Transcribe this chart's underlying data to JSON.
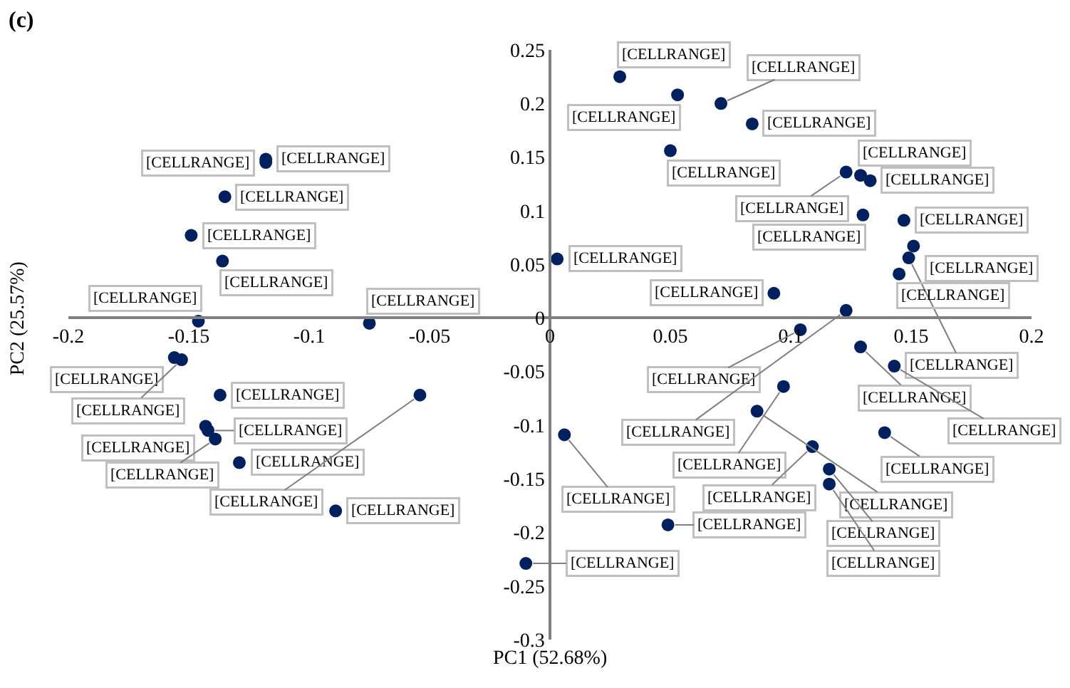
{
  "chart_data": {
    "type": "scatter",
    "title": "(c)",
    "xlabel": "PC1 (52.68%)",
    "ylabel": "PC2 (25.57%)",
    "x": [
      -0.118,
      -0.118,
      -0.135,
      -0.149,
      -0.136,
      -0.146,
      -0.075,
      -0.156,
      -0.153,
      -0.137,
      -0.143,
      -0.142,
      -0.139,
      -0.129,
      -0.089,
      -0.01,
      -0.054,
      0.029,
      0.053,
      0.071,
      0.084,
      0.05,
      0.123,
      0.129,
      0.133,
      0.13,
      0.147,
      0.151,
      0.149,
      0.145,
      0.003,
      0.093,
      0.104,
      0.129,
      0.123,
      0.097,
      0.086,
      0.143,
      0.139,
      0.109,
      0.116,
      0.116,
      0.006,
      0.049
    ],
    "series": [
      {
        "color": "#002060",
        "values": [
          0.148,
          0.145,
          0.113,
          0.077,
          0.053,
          -0.003,
          -0.005,
          -0.037,
          -0.039,
          -0.072,
          -0.101,
          -0.105,
          -0.113,
          -0.135,
          -0.18,
          -0.229,
          -0.072,
          0.225,
          0.208,
          0.2,
          0.181,
          0.156,
          0.136,
          0.133,
          0.128,
          0.096,
          0.091,
          0.067,
          0.056,
          0.041,
          0.055,
          0.023,
          -0.011,
          -0.027,
          0.007,
          -0.064,
          -0.087,
          -0.045,
          -0.107,
          -0.12,
          -0.141,
          -0.155,
          -0.109,
          -0.193
        ],
        "value_labels": [
          "[CELLRANGE]",
          "[CELLRANGE]",
          "[CELLRANGE]",
          "[CELLRANGE]",
          "[CELLRANGE]",
          "[CELLRANGE]",
          "[CELLRANGE]",
          "[CELLRANGE]",
          "[CELLRANGE]",
          "[CELLRANGE]",
          "[CELLRANGE]",
          "[CELLRANGE]",
          "[CELLRANGE]",
          "[CELLRANGE]",
          "[CELLRANGE]",
          "[CELLRANGE]",
          "[CELLRANGE]",
          "[CELLRANGE]",
          "[CELLRANGE]",
          "[CELLRANGE]",
          "[CELLRANGE]",
          "[CELLRANGE]",
          "[CELLRANGE]",
          "[CELLRANGE]",
          "[CELLRANGE]",
          "[CELLRANGE]",
          "[CELLRANGE]",
          "[CELLRANGE]",
          "[CELLRANGE]",
          "[CELLRANGE]",
          "[CELLRANGE]",
          "[CELLRANGE]",
          "[CELLRANGE]",
          "[CELLRANGE]",
          "[CELLRANGE]",
          "[CELLRANGE]",
          "[CELLRANGE]",
          "[CELLRANGE]",
          "[CELLRANGE]",
          "[CELLRANGE]",
          "[CELLRANGE]",
          "[CELLRANGE]",
          "[CELLRANGE]",
          "[CELLRANGE]"
        ]
      }
    ],
    "xlim": [
      -0.2,
      0.2
    ],
    "xticks": [
      -0.2,
      -0.15,
      -0.1,
      -0.05,
      0,
      0.05,
      0.1,
      0.15,
      0.2
    ],
    "ylim": [
      -0.3,
      0.25
    ],
    "yticks": [
      -0.3,
      -0.25,
      -0.2,
      -0.15,
      -0.1,
      -0.05,
      0,
      0.05,
      0.1,
      0.15,
      0.2,
      0.25
    ],
    "marker": "circle",
    "grid": false
  }
}
